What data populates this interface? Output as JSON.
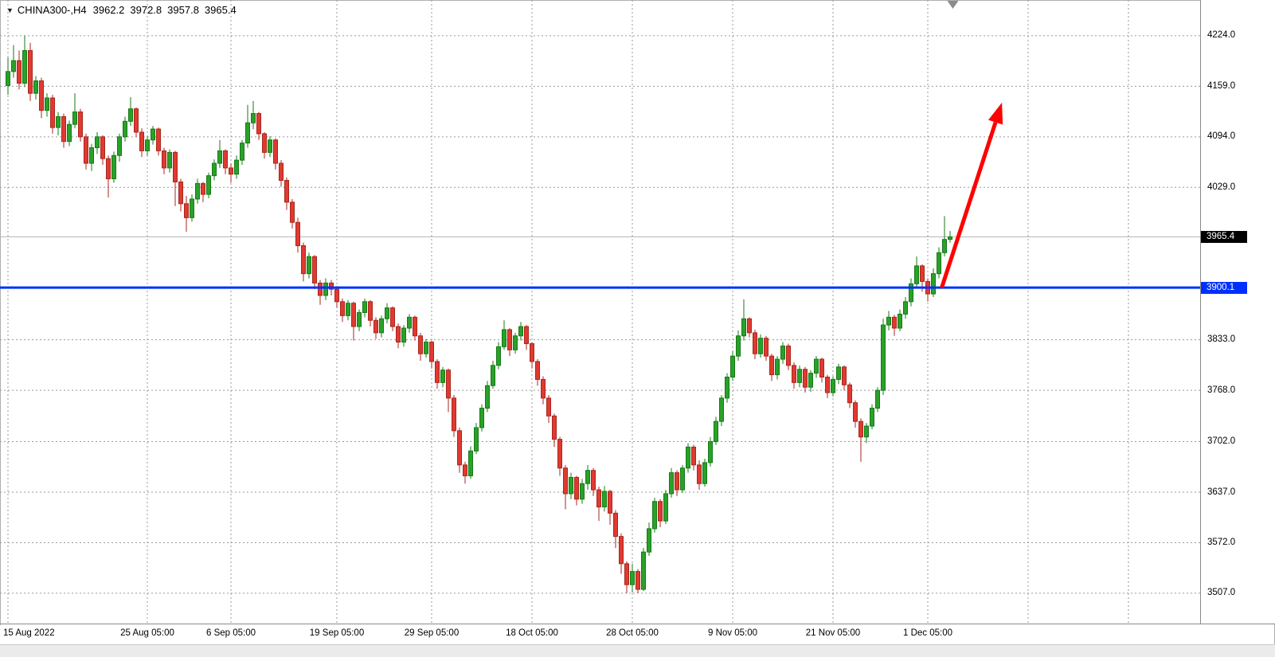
{
  "header": {
    "dropdown_icon": "▼",
    "symbol": "CHINA300-,H4",
    "open": "3962.2",
    "high": "3972.8",
    "low": "3957.8",
    "close": "3965.4"
  },
  "price_scale": {
    "ticks": [
      {
        "label": "4224.0",
        "price": 4224.0
      },
      {
        "label": "4159.0",
        "price": 4159.0
      },
      {
        "label": "4094.0",
        "price": 4094.0
      },
      {
        "label": "4029.0",
        "price": 4029.0
      },
      {
        "label": "3833.0",
        "price": 3833.0
      },
      {
        "label": "3768.0",
        "price": 3768.0
      },
      {
        "label": "3702.0",
        "price": 3702.0
      },
      {
        "label": "3637.0",
        "price": 3637.0
      },
      {
        "label": "3572.0",
        "price": 3572.0
      },
      {
        "label": "3507.0",
        "price": 3507.0
      }
    ],
    "current_badge": {
      "label": "3965.4",
      "price": 3965.4,
      "bg": "#000000",
      "fg": "#ffffff"
    },
    "hline_badge": {
      "label": "3900.1",
      "price": 3900.1,
      "bg": "#0030ff",
      "fg": "#ffffff"
    }
  },
  "chart_data": {
    "type": "candlestick",
    "title": "CHINA300-,H4",
    "symbol": "CHINA300-",
    "timeframe": "H4",
    "ylim": [
      3468,
      4270
    ],
    "grid": true,
    "up_color": "#2aa12a",
    "up_stroke": "#157a15",
    "down_color": "#e03a30",
    "down_stroke": "#a8261d",
    "current_price_line": {
      "price": 3965.4,
      "color": "#b5b5b5"
    },
    "hline": {
      "price": 3900.1,
      "color": "#0030ff",
      "width": 3
    },
    "arrow": {
      "from_index": 167.5,
      "from_price": 3900,
      "to_index": 178.3,
      "to_price": 4138,
      "color": "#ff0000",
      "width": 5
    },
    "shift_marker_index": 169.5,
    "x_ticks": [
      {
        "label": "15 Aug 2022",
        "index": 0
      },
      {
        "label": "25 Aug 05:00",
        "index": 25
      },
      {
        "label": "6 Sep 05:00",
        "index": 40
      },
      {
        "label": "19 Sep 05:00",
        "index": 59
      },
      {
        "label": "29 Sep 05:00",
        "index": 76
      },
      {
        "label": "18 Oct 05:00",
        "index": 94
      },
      {
        "label": "28 Oct 05:00",
        "index": 112
      },
      {
        "label": "9 Nov 05:00",
        "index": 130
      },
      {
        "label": "21 Nov 05:00",
        "index": 148
      },
      {
        "label": "1 Dec 05:00",
        "index": 165
      }
    ],
    "extra_gridline_indices": [
      183,
      201
    ],
    "candles": [
      [
        4160,
        4196,
        4148,
        4178
      ],
      [
        4178,
        4212,
        4170,
        4192
      ],
      [
        4192,
        4205,
        4155,
        4163
      ],
      [
        4163,
        4224,
        4158,
        4205
      ],
      [
        4205,
        4215,
        4140,
        4150
      ],
      [
        4150,
        4172,
        4142,
        4166
      ],
      [
        4166,
        4170,
        4118,
        4128
      ],
      [
        4128,
        4150,
        4120,
        4144
      ],
      [
        4144,
        4148,
        4098,
        4106
      ],
      [
        4106,
        4126,
        4096,
        4120
      ],
      [
        4120,
        4124,
        4080,
        4088
      ],
      [
        4088,
        4115,
        4082,
        4110
      ],
      [
        4110,
        4150,
        4105,
        4126
      ],
      [
        4126,
        4130,
        4088,
        4094
      ],
      [
        4094,
        4098,
        4052,
        4060
      ],
      [
        4060,
        4085,
        4050,
        4080
      ],
      [
        4080,
        4100,
        4072,
        4094
      ],
      [
        4094,
        4096,
        4058,
        4066
      ],
      [
        4066,
        4070,
        4016,
        4040
      ],
      [
        4040,
        4075,
        4035,
        4070
      ],
      [
        4070,
        4098,
        4062,
        4094
      ],
      [
        4094,
        4120,
        4088,
        4114
      ],
      [
        4114,
        4145,
        4108,
        4130
      ],
      [
        4130,
        4132,
        4094,
        4100
      ],
      [
        4100,
        4105,
        4068,
        4076
      ],
      [
        4076,
        4095,
        4070,
        4090
      ],
      [
        4090,
        4108,
        4084,
        4104
      ],
      [
        4104,
        4106,
        4070,
        4076
      ],
      [
        4076,
        4080,
        4046,
        4054
      ],
      [
        4054,
        4078,
        4048,
        4074
      ],
      [
        4074,
        4076,
        4005,
        4036
      ],
      [
        4036,
        4040,
        3998,
        4008
      ],
      [
        4008,
        4018,
        3972,
        3990
      ],
      [
        3990,
        4020,
        3985,
        4014
      ],
      [
        4014,
        4040,
        4008,
        4034
      ],
      [
        4034,
        4036,
        4010,
        4020
      ],
      [
        4020,
        4048,
        4015,
        4044
      ],
      [
        4044,
        4065,
        4038,
        4060
      ],
      [
        4060,
        4090,
        4054,
        4076
      ],
      [
        4076,
        4078,
        4046,
        4054
      ],
      [
        4054,
        4060,
        4035,
        4046
      ],
      [
        4046,
        4070,
        4040,
        4064
      ],
      [
        4064,
        4090,
        4058,
        4086
      ],
      [
        4086,
        4135,
        4080,
        4112
      ],
      [
        4112,
        4140,
        4104,
        4124
      ],
      [
        4124,
        4126,
        4090,
        4098
      ],
      [
        4098,
        4100,
        4066,
        4074
      ],
      [
        4074,
        4095,
        4068,
        4090
      ],
      [
        4090,
        4092,
        4052,
        4060
      ],
      [
        4060,
        4064,
        4030,
        4038
      ],
      [
        4038,
        4042,
        4000,
        4010
      ],
      [
        4010,
        4014,
        3976,
        3984
      ],
      [
        3984,
        3990,
        3945,
        3954
      ],
      [
        3954,
        3958,
        3908,
        3918
      ],
      [
        3918,
        3945,
        3912,
        3940
      ],
      [
        3940,
        3942,
        3898,
        3906
      ],
      [
        3906,
        3910,
        3878,
        3890
      ],
      [
        3890,
        3912,
        3884,
        3906
      ],
      [
        3906,
        3910,
        3890,
        3898
      ],
      [
        3898,
        3902,
        3874,
        3882
      ],
      [
        3882,
        3886,
        3856,
        3864
      ],
      [
        3864,
        3884,
        3858,
        3880
      ],
      [
        3880,
        3882,
        3832,
        3850
      ],
      [
        3850,
        3872,
        3844,
        3868
      ],
      [
        3868,
        3886,
        3862,
        3882
      ],
      [
        3882,
        3884,
        3850,
        3858
      ],
      [
        3858,
        3862,
        3834,
        3842
      ],
      [
        3842,
        3864,
        3836,
        3860
      ],
      [
        3860,
        3880,
        3854,
        3874
      ],
      [
        3874,
        3876,
        3844,
        3850
      ],
      [
        3850,
        3854,
        3822,
        3830
      ],
      [
        3830,
        3852,
        3824,
        3848
      ],
      [
        3848,
        3866,
        3842,
        3862
      ],
      [
        3862,
        3864,
        3832,
        3838
      ],
      [
        3838,
        3842,
        3806,
        3815
      ],
      [
        3815,
        3834,
        3810,
        3830
      ],
      [
        3830,
        3832,
        3796,
        3805
      ],
      [
        3805,
        3808,
        3770,
        3778
      ],
      [
        3778,
        3798,
        3772,
        3794
      ],
      [
        3794,
        3796,
        3740,
        3758
      ],
      [
        3758,
        3762,
        3708,
        3716
      ],
      [
        3716,
        3720,
        3662,
        3672
      ],
      [
        3672,
        3676,
        3648,
        3658
      ],
      [
        3658,
        3696,
        3654,
        3690
      ],
      [
        3690,
        3726,
        3686,
        3720
      ],
      [
        3720,
        3750,
        3715,
        3745
      ],
      [
        3745,
        3780,
        3740,
        3774
      ],
      [
        3774,
        3806,
        3770,
        3800
      ],
      [
        3800,
        3830,
        3795,
        3824
      ],
      [
        3824,
        3858,
        3820,
        3846
      ],
      [
        3846,
        3848,
        3812,
        3820
      ],
      [
        3820,
        3842,
        3815,
        3838
      ],
      [
        3838,
        3856,
        3832,
        3850
      ],
      [
        3850,
        3852,
        3820,
        3828
      ],
      [
        3828,
        3830,
        3796,
        3805
      ],
      [
        3805,
        3808,
        3774,
        3782
      ],
      [
        3782,
        3786,
        3750,
        3758
      ],
      [
        3758,
        3762,
        3726,
        3735
      ],
      [
        3735,
        3738,
        3695,
        3705
      ],
      [
        3705,
        3708,
        3658,
        3668
      ],
      [
        3668,
        3672,
        3615,
        3635
      ],
      [
        3635,
        3662,
        3628,
        3656
      ],
      [
        3656,
        3658,
        3620,
        3628
      ],
      [
        3628,
        3654,
        3622,
        3648
      ],
      [
        3648,
        3672,
        3640,
        3665
      ],
      [
        3665,
        3668,
        3632,
        3640
      ],
      [
        3640,
        3644,
        3600,
        3618
      ],
      [
        3618,
        3645,
        3612,
        3638
      ],
      [
        3638,
        3640,
        3595,
        3610
      ],
      [
        3610,
        3614,
        3565,
        3580
      ],
      [
        3580,
        3584,
        3532,
        3545
      ],
      [
        3545,
        3548,
        3507,
        3518
      ],
      [
        3518,
        3545,
        3508,
        3535
      ],
      [
        3535,
        3538,
        3507,
        3512
      ],
      [
        3512,
        3565,
        3510,
        3560
      ],
      [
        3560,
        3598,
        3555,
        3590
      ],
      [
        3590,
        3630,
        3585,
        3625
      ],
      [
        3625,
        3628,
        3592,
        3600
      ],
      [
        3600,
        3640,
        3596,
        3635
      ],
      [
        3635,
        3668,
        3630,
        3662
      ],
      [
        3662,
        3665,
        3632,
        3640
      ],
      [
        3640,
        3672,
        3636,
        3668
      ],
      [
        3668,
        3700,
        3662,
        3695
      ],
      [
        3695,
        3698,
        3665,
        3672
      ],
      [
        3672,
        3678,
        3640,
        3648
      ],
      [
        3648,
        3680,
        3644,
        3675
      ],
      [
        3675,
        3708,
        3670,
        3702
      ],
      [
        3702,
        3734,
        3698,
        3728
      ],
      [
        3728,
        3762,
        3722,
        3758
      ],
      [
        3758,
        3790,
        3752,
        3785
      ],
      [
        3785,
        3818,
        3780,
        3812
      ],
      [
        3812,
        3845,
        3806,
        3838
      ],
      [
        3838,
        3885,
        3832,
        3860
      ],
      [
        3860,
        3862,
        3836,
        3842
      ],
      [
        3842,
        3846,
        3808,
        3815
      ],
      [
        3815,
        3840,
        3810,
        3835
      ],
      [
        3835,
        3838,
        3806,
        3812
      ],
      [
        3812,
        3815,
        3780,
        3788
      ],
      [
        3788,
        3812,
        3782,
        3808
      ],
      [
        3808,
        3830,
        3802,
        3825
      ],
      [
        3825,
        3828,
        3794,
        3800
      ],
      [
        3800,
        3804,
        3770,
        3778
      ],
      [
        3778,
        3800,
        3772,
        3795
      ],
      [
        3795,
        3798,
        3765,
        3772
      ],
      [
        3772,
        3794,
        3766,
        3790
      ],
      [
        3790,
        3812,
        3784,
        3808
      ],
      [
        3808,
        3810,
        3778,
        3785
      ],
      [
        3785,
        3788,
        3758,
        3765
      ],
      [
        3765,
        3786,
        3760,
        3782
      ],
      [
        3782,
        3802,
        3776,
        3798
      ],
      [
        3798,
        3800,
        3768,
        3775
      ],
      [
        3775,
        3778,
        3745,
        3752
      ],
      [
        3752,
        3755,
        3720,
        3728
      ],
      [
        3728,
        3732,
        3676,
        3708
      ],
      [
        3708,
        3726,
        3700,
        3722
      ],
      [
        3722,
        3750,
        3718,
        3745
      ],
      [
        3745,
        3772,
        3740,
        3768
      ],
      [
        3768,
        3860,
        3762,
        3852
      ],
      [
        3852,
        3870,
        3845,
        3862
      ],
      [
        3862,
        3865,
        3838,
        3848
      ],
      [
        3848,
        3872,
        3844,
        3866
      ],
      [
        3866,
        3888,
        3860,
        3882
      ],
      [
        3882,
        3912,
        3876,
        3905
      ],
      [
        3905,
        3940,
        3900,
        3928
      ],
      [
        3928,
        3930,
        3895,
        3908
      ],
      [
        3908,
        3912,
        3882,
        3892
      ],
      [
        3892,
        3925,
        3888,
        3918
      ],
      [
        3918,
        3952,
        3912,
        3945
      ],
      [
        3945,
        3992,
        3940,
        3962
      ],
      [
        3962.2,
        3972.8,
        3957.8,
        3965.4
      ]
    ]
  }
}
